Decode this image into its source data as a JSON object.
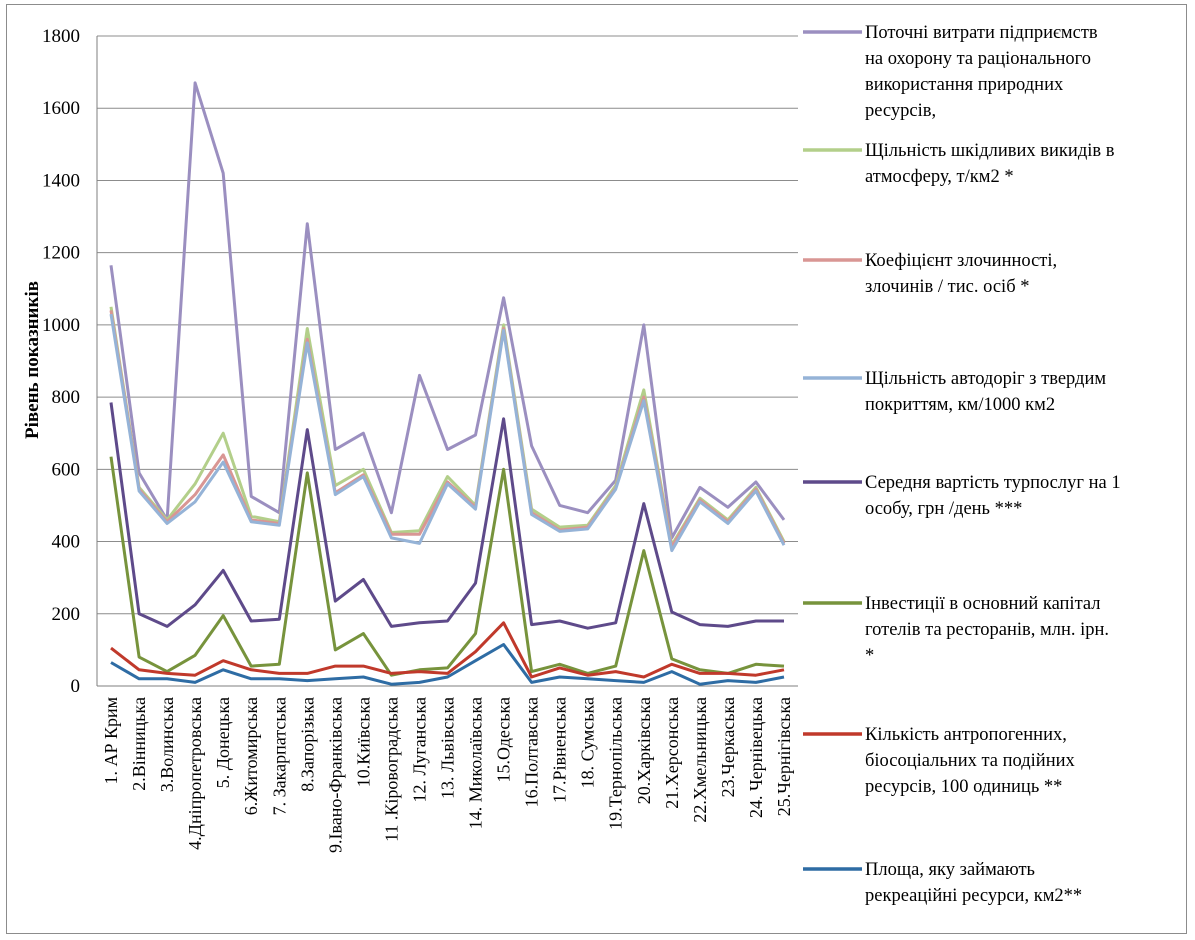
{
  "chart_data": {
    "type": "line",
    "title": "",
    "xlabel": "",
    "ylabel": "Рівень показників",
    "ylim": [
      0,
      1800
    ],
    "yticks": [
      0,
      200,
      400,
      600,
      800,
      1000,
      1200,
      1400,
      1600,
      1800
    ],
    "grid": true,
    "legend_position": "right",
    "categories": [
      "1. АР Крим",
      "2.Вінницька",
      "3.Волинська",
      "4.Дніпропетровська",
      "5. Донецька",
      "6.Житомирська",
      "7. Закарпатська",
      "8.Запорізька",
      "9.Івано-Франківська",
      "10.Київська",
      "11 .Кіровоградська",
      "12. Луганська",
      "13. Львівська",
      "14. Миколаївська",
      "15.Одеська",
      "16.Полтавська",
      "17.Рівненська",
      "18. Сумська",
      "19.Тернопільська",
      "20.Харківська",
      "21.Херсонська",
      "22.Хмельницька",
      "23.Черкаська",
      "24. Чернівецька",
      "25.Чернігівська"
    ],
    "series": [
      {
        "name": "Поточні витрати підприємств на охорону та раціонального використання природних ресурсів,",
        "legend_lines": [
          "Поточні витрати підприємств",
          "на охорону та раціонального",
          "використання природних",
          "ресурсів,"
        ],
        "color": "#9b8fc0",
        "values": [
          1165,
          590,
          460,
          1670,
          1420,
          525,
          480,
          1280,
          655,
          700,
          480,
          860,
          655,
          695,
          1075,
          665,
          500,
          480,
          570,
          1000,
          410,
          550,
          495,
          565,
          460
        ]
      },
      {
        "name": "Щільність шкідливих викидів в атмосферу, т/км2 *",
        "legend_lines": [
          "Щільність шкідливих викидів в",
          "атмосферу, т/км2 *"
        ],
        "color": "#b3cf8a",
        "values": [
          1050,
          550,
          460,
          560,
          700,
          470,
          455,
          990,
          555,
          600,
          425,
          430,
          580,
          500,
          1000,
          490,
          440,
          445,
          555,
          820,
          390,
          520,
          460,
          550,
          400
        ]
      },
      {
        "name": "Коефіцієнт злочинності, злочинів / тис. осіб *",
        "legend_lines": [
          "Коефіцієнт злочинності,",
          "злочинів / тис. осіб *"
        ],
        "color": "#d99694",
        "values": [
          1040,
          545,
          455,
          530,
          640,
          460,
          450,
          960,
          535,
          585,
          420,
          420,
          565,
          495,
          990,
          480,
          432,
          440,
          548,
          800,
          385,
          515,
          455,
          545,
          395
        ]
      },
      {
        "name": "Щільність автодоріг з твердим покриттям, км/1000 км2",
        "legend_lines": [
          "Щільність  автодоріг з твердим",
          "покриттям, км/1000  км2"
        ],
        "color": "#95b3d7",
        "values": [
          1030,
          540,
          450,
          510,
          620,
          455,
          445,
          950,
          530,
          580,
          410,
          395,
          560,
          490,
          985,
          475,
          428,
          435,
          545,
          790,
          375,
          510,
          450,
          540,
          390
        ]
      },
      {
        "name": "Середня вартість турпослуг на 1 особу, грн /день ***",
        "legend_lines": [
          "Середня вартість турпослуг на 1",
          "особу, грн /день ***"
        ],
        "color": "#5e4a8a",
        "values": [
          785,
          200,
          165,
          225,
          320,
          180,
          185,
          710,
          235,
          295,
          165,
          175,
          180,
          285,
          740,
          170,
          180,
          160,
          175,
          505,
          205,
          170,
          165,
          180,
          180
        ]
      },
      {
        "name": "Інвестиції в основний капітал готелів та ресторанів, млн. ірн. *",
        "legend_lines": [
          "Інвестиції  в основний капітал",
          "готелів  та ресторанів,  млн. ірн.",
          "*"
        ],
        "color": "#77933c",
        "values": [
          635,
          80,
          40,
          85,
          195,
          55,
          60,
          590,
          100,
          145,
          30,
          45,
          50,
          145,
          600,
          40,
          60,
          35,
          55,
          375,
          75,
          45,
          35,
          60,
          55
        ]
      },
      {
        "name": "Кількість антропогенних, біосоціальних та подійних ресурсів, 100 одиниць **",
        "legend_lines": [
          "Кількість   антропогенних,",
          "біосоціальних   та подійних",
          "ресурсів, 100  одиниць **"
        ],
        "color": "#c0392b",
        "values": [
          105,
          45,
          35,
          30,
          70,
          45,
          35,
          35,
          55,
          55,
          35,
          40,
          35,
          95,
          175,
          25,
          50,
          30,
          40,
          25,
          60,
          35,
          35,
          30,
          45
        ]
      },
      {
        "name": "Площа, яку займають рекреаційні ресурси, км2**",
        "legend_lines": [
          "Площа,  яку займають",
          "рекреаційні ресурси, км2**"
        ],
        "color": "#2e6ca4",
        "values": [
          65,
          20,
          20,
          10,
          45,
          20,
          20,
          15,
          20,
          25,
          5,
          10,
          25,
          70,
          115,
          10,
          25,
          20,
          15,
          10,
          40,
          5,
          15,
          10,
          25
        ]
      }
    ]
  }
}
